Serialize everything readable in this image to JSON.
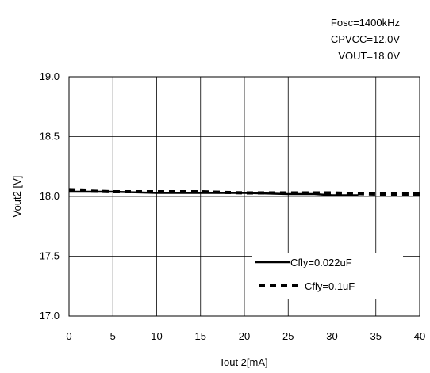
{
  "conditions": {
    "line1": "Fosc=1400kHz",
    "line2": "CPVCC=12.0V",
    "line3": "VOUT=18.0V"
  },
  "chart_data": {
    "type": "line",
    "xlabel": "Iout 2[mA]",
    "ylabel": "Vout2 [V]",
    "xlim": [
      0,
      40
    ],
    "ylim": [
      17.0,
      19.0
    ],
    "x_ticks": [
      "0",
      "5",
      "10",
      "15",
      "20",
      "25",
      "30",
      "35",
      "40"
    ],
    "y_ticks": [
      "17.0",
      "17.5",
      "18.0",
      "18.5",
      "19.0"
    ],
    "grid": true,
    "legend_position": "bottom-right",
    "series": [
      {
        "name": "Cfly=0.022uF",
        "style": "solid",
        "x": [
          0,
          5,
          10,
          15,
          20,
          25,
          28,
          30,
          33
        ],
        "y": [
          18.04,
          18.04,
          18.03,
          18.03,
          18.03,
          18.02,
          18.02,
          18.01,
          18.01
        ]
      },
      {
        "name": "Cfly=0.1uF",
        "style": "dashed",
        "x": [
          0,
          5,
          10,
          15,
          20,
          25,
          30,
          35,
          40
        ],
        "y": [
          18.05,
          18.04,
          18.04,
          18.04,
          18.03,
          18.03,
          18.03,
          18.02,
          18.02
        ]
      }
    ],
    "colors": {
      "line": "#000000",
      "grid": "#000000",
      "background": "#ffffff"
    }
  }
}
